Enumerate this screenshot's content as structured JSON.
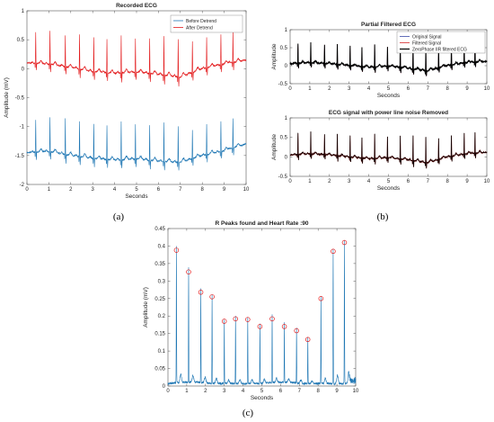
{
  "panel_labels": {
    "a": "(a)",
    "b": "(b)",
    "c": "(c)"
  },
  "colors": {
    "blue": "#1f77b4",
    "red": "#e31a1c",
    "orig": "#3b4ba8",
    "filt": "#d62728",
    "black": "#000000",
    "maroon": "#5a1010",
    "marker": "#e31a1c"
  },
  "chart_data": [
    {
      "id": "a",
      "type": "line",
      "title": "Recorded ECG",
      "xlabel": "Seconds",
      "ylabel": "Amplitude (mV)",
      "xlim": [
        0,
        10
      ],
      "ylim": [
        -2,
        1
      ],
      "xticks": [
        0,
        1,
        2,
        3,
        4,
        5,
        6,
        7,
        8,
        9,
        10
      ],
      "yticks": [
        -2,
        -1.5,
        -1,
        -0.5,
        0,
        0.5,
        1
      ],
      "ytick_labels": [
        "-2",
        "-1.5",
        "-1",
        "-0.5",
        "0",
        "0.5",
        "1"
      ],
      "legend": "top-right",
      "beat_times": [
        0.4,
        1.05,
        1.75,
        2.4,
        3.05,
        3.65,
        4.3,
        4.95,
        5.6,
        6.25,
        6.9,
        7.55,
        8.2,
        8.85,
        9.4
      ],
      "series": [
        {
          "name": "Before Detrend",
          "color": "#1f77b4",
          "baseline": [
            [
              0,
              -1.45
            ],
            [
              1,
              -1.43
            ],
            [
              2,
              -1.5
            ],
            [
              3,
              -1.55
            ],
            [
              4,
              -1.58
            ],
            [
              5,
              -1.56
            ],
            [
              6,
              -1.6
            ],
            [
              7,
              -1.62
            ],
            [
              8,
              -1.5
            ],
            [
              9,
              -1.42
            ],
            [
              10,
              -1.3
            ]
          ],
          "peak": [
            -0.88,
            -0.84,
            -0.86,
            -0.9,
            -0.95,
            -0.98,
            -0.92,
            -0.96,
            -0.97,
            -0.94,
            -1.0,
            -1.05,
            -0.95,
            -0.9,
            -0.85
          ]
        },
        {
          "name": "After Detrend",
          "color": "#e31a1c",
          "baseline": [
            [
              0,
              0.1
            ],
            [
              1,
              0.08
            ],
            [
              2,
              0.02
            ],
            [
              3,
              -0.05
            ],
            [
              4,
              -0.08
            ],
            [
              5,
              -0.06
            ],
            [
              6,
              -0.1
            ],
            [
              7,
              -0.15
            ],
            [
              8,
              0.0
            ],
            [
              9,
              0.08
            ],
            [
              10,
              0.15
            ]
          ],
          "peak": [
            0.62,
            0.65,
            0.58,
            0.6,
            0.55,
            0.5,
            0.58,
            0.52,
            0.53,
            0.56,
            0.5,
            0.48,
            0.55,
            0.6,
            0.65
          ]
        }
      ]
    },
    {
      "id": "b1",
      "type": "line",
      "title": "Partial Filtered ECG",
      "xlabel": "Seconds",
      "ylabel": "Amplitude",
      "xlim": [
        0,
        10
      ],
      "ylim": [
        -0.5,
        1
      ],
      "xticks": [
        0,
        1,
        2,
        3,
        4,
        5,
        6,
        7,
        8,
        9,
        10
      ],
      "yticks": [
        -0.5,
        0,
        0.5,
        1
      ],
      "ytick_labels": [
        "-0.5",
        "0",
        "0.5",
        "1"
      ],
      "legend": "top-right",
      "beat_times": [
        0.4,
        1.05,
        1.75,
        2.4,
        3.05,
        3.65,
        4.3,
        4.95,
        5.6,
        6.25,
        6.9,
        7.55,
        8.2,
        8.85,
        9.4
      ],
      "baseline": [
        [
          0,
          0.05
        ],
        [
          1,
          0.08
        ],
        [
          2,
          0.05
        ],
        [
          3,
          0.0
        ],
        [
          4,
          -0.05
        ],
        [
          5,
          -0.02
        ],
        [
          6,
          -0.08
        ],
        [
          7,
          -0.15
        ],
        [
          8,
          0.0
        ],
        [
          9,
          0.08
        ],
        [
          10,
          0.12
        ]
      ],
      "peak": [
        0.62,
        0.64,
        0.58,
        0.6,
        0.55,
        0.5,
        0.58,
        0.52,
        0.53,
        0.56,
        0.5,
        0.48,
        0.55,
        0.6,
        0.62
      ],
      "series": [
        {
          "name": "Original Signal",
          "color": "#3b4ba8"
        },
        {
          "name": "Filtered Signal",
          "color": "#d62728"
        },
        {
          "name": "ZeroPhase IIR filtered ECG",
          "color": "#000000"
        }
      ]
    },
    {
      "id": "b2",
      "type": "line",
      "title": "ECG signal with power line noise Removed",
      "xlabel": "Seconds",
      "ylabel": "Amplitude",
      "xlim": [
        0,
        10
      ],
      "ylim": [
        -0.5,
        1
      ],
      "xticks": [
        0,
        1,
        2,
        3,
        4,
        5,
        6,
        7,
        8,
        9,
        10
      ],
      "yticks": [
        -0.5,
        0,
        0.5,
        1
      ],
      "ytick_labels": [
        "-0.5",
        "0",
        "0.5",
        "1"
      ],
      "beat_times": [
        0.4,
        1.05,
        1.75,
        2.4,
        3.05,
        3.65,
        4.3,
        4.95,
        5.6,
        6.25,
        6.9,
        7.55,
        8.2,
        8.85,
        9.4
      ],
      "baseline": [
        [
          0,
          0.05
        ],
        [
          1,
          0.08
        ],
        [
          2,
          0.05
        ],
        [
          3,
          0.0
        ],
        [
          4,
          -0.05
        ],
        [
          5,
          -0.02
        ],
        [
          6,
          -0.08
        ],
        [
          7,
          -0.15
        ],
        [
          8,
          0.0
        ],
        [
          9,
          0.08
        ],
        [
          10,
          0.12
        ]
      ],
      "peak": [
        0.62,
        0.64,
        0.58,
        0.6,
        0.55,
        0.5,
        0.58,
        0.52,
        0.53,
        0.56,
        0.5,
        0.48,
        0.55,
        0.6,
        0.62
      ],
      "series": [
        {
          "name": "Original Signal",
          "color": "#5a1010"
        },
        {
          "name": "Filtered Signal",
          "color": "#000000"
        }
      ]
    },
    {
      "id": "c",
      "type": "line",
      "title": "R Peaks found and Heart Rate :90",
      "xlabel": "Seconds",
      "ylabel": "Amplitude (mV)",
      "xlim": [
        0,
        10
      ],
      "ylim": [
        0,
        0.45
      ],
      "xticks": [
        0,
        1,
        2,
        3,
        4,
        5,
        6,
        7,
        8,
        9,
        10
      ],
      "yticks": [
        0,
        0.05,
        0.1,
        0.15,
        0.2,
        0.25,
        0.3,
        0.35,
        0.4,
        0.45
      ],
      "ytick_labels": [
        "0",
        "0.05",
        "0.1",
        "0.15",
        "0.2",
        "0.25",
        "0.3",
        "0.35",
        "0.4",
        "0.45"
      ],
      "peaks": {
        "x": [
          0.45,
          1.1,
          1.75,
          2.35,
          3.0,
          3.6,
          4.25,
          4.9,
          5.55,
          6.2,
          6.85,
          7.45,
          8.15,
          8.8,
          9.4
        ],
        "y": [
          0.388,
          0.326,
          0.268,
          0.255,
          0.185,
          0.192,
          0.19,
          0.17,
          0.192,
          0.17,
          0.158,
          0.133,
          0.25,
          0.385,
          0.41
        ]
      }
    }
  ]
}
